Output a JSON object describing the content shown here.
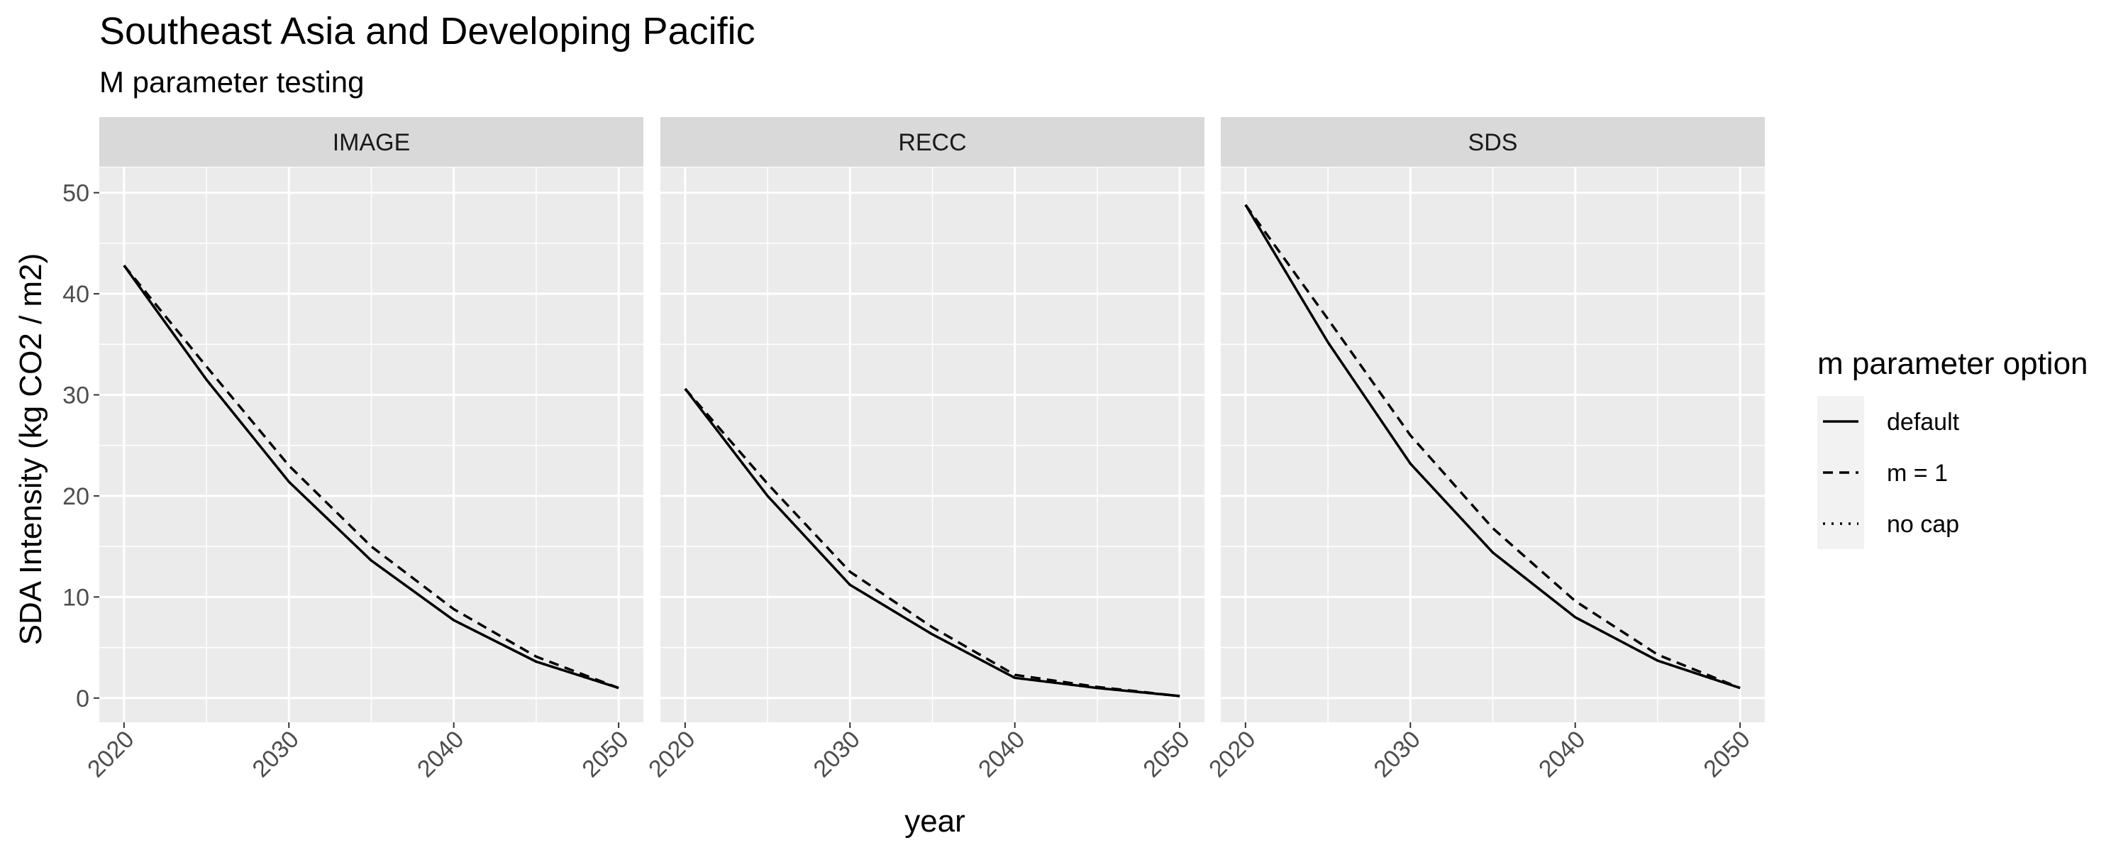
{
  "chart_data": {
    "type": "line",
    "title": "Southeast Asia and Developing Pacific",
    "subtitle": "M parameter testing",
    "xlabel": "year",
    "ylabel": "SDA Intensity (kg CO2 / m2)",
    "xlim": [
      2018.5,
      2051.5
    ],
    "ylim": [
      -2.4,
      52.5
    ],
    "x_ticks": [
      2020,
      2030,
      2040,
      2050
    ],
    "y_ticks": [
      0,
      10,
      20,
      30,
      40,
      50
    ],
    "grid": true,
    "legend": {
      "title": "m parameter option",
      "position": "right",
      "entries": [
        {
          "label": "default",
          "dash": "solid"
        },
        {
          "label": "m = 1",
          "dash": "dashed"
        },
        {
          "label": "no cap",
          "dash": "dotted"
        }
      ]
    },
    "panels": [
      {
        "label": "IMAGE",
        "x": [
          2020,
          2025,
          2030,
          2035,
          2040,
          2045,
          2050
        ],
        "series": [
          {
            "name": "default",
            "values": [
              42.8,
              31.5,
              21.4,
              13.6,
              7.7,
              3.6,
              1.0
            ]
          },
          {
            "name": "m = 1",
            "values": [
              42.8,
              32.8,
              23.0,
              15.0,
              8.8,
              4.1,
              1.0
            ]
          },
          {
            "name": "no cap",
            "values": [
              42.8,
              31.5,
              21.4,
              13.6,
              7.7,
              3.6,
              1.0
            ]
          }
        ]
      },
      {
        "label": "RECC",
        "x": [
          2020,
          2025,
          2030,
          2035,
          2040,
          2045,
          2050
        ],
        "series": [
          {
            "name": "default",
            "values": [
              30.6,
              20.0,
              11.2,
              6.3,
              2.0,
              1.0,
              0.2
            ]
          },
          {
            "name": "m = 1",
            "values": [
              30.6,
              21.2,
              12.5,
              7.0,
              2.3,
              1.1,
              0.2
            ]
          },
          {
            "name": "no cap",
            "values": [
              30.6,
              20.0,
              11.2,
              6.3,
              2.0,
              1.0,
              0.2
            ]
          }
        ]
      },
      {
        "label": "SDS",
        "x": [
          2020,
          2025,
          2030,
          2035,
          2040,
          2045,
          2050
        ],
        "series": [
          {
            "name": "default",
            "values": [
              48.8,
              35.2,
              23.2,
              14.4,
              8.0,
              3.7,
              1.0
            ]
          },
          {
            "name": "m = 1",
            "values": [
              48.8,
              37.5,
              26.0,
              16.8,
              9.6,
              4.3,
              1.0
            ]
          },
          {
            "name": "no cap",
            "values": [
              48.8,
              35.2,
              23.2,
              14.4,
              8.0,
              3.7,
              1.0
            ]
          }
        ]
      }
    ]
  }
}
